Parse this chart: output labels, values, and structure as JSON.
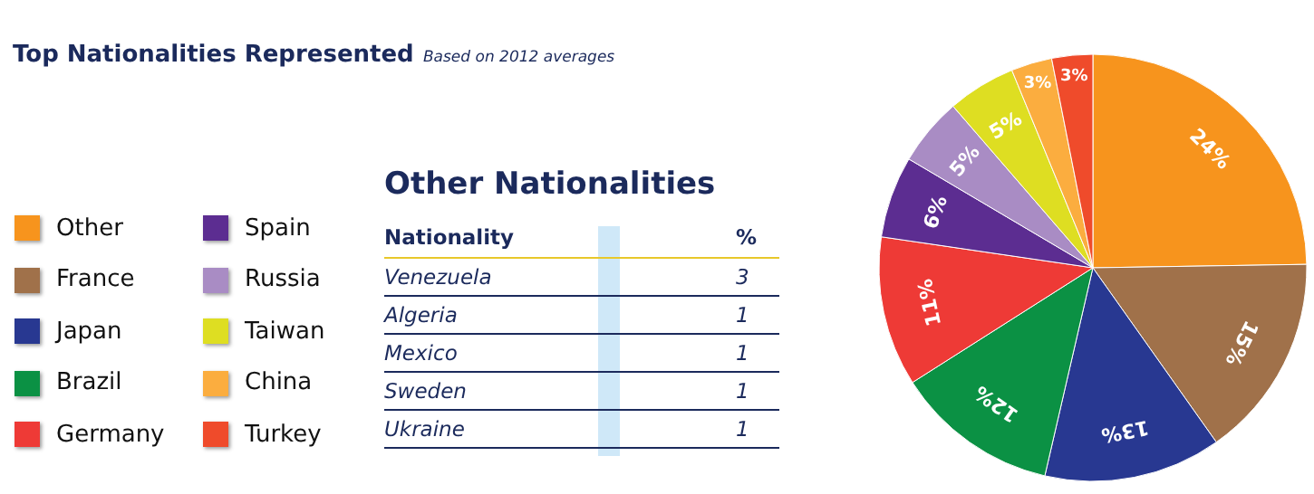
{
  "chart_data": [
    {
      "type": "pie",
      "title": "Top Nationalities Represented",
      "subtitle": "Based on 2012 averages",
      "legend": "left",
      "categories": [
        "Other",
        "France",
        "Japan",
        "Brazil",
        "Germany",
        "Spain",
        "Russia",
        "Taiwan",
        "China",
        "Turkey"
      ],
      "values": [
        24,
        15,
        13,
        12,
        11,
        6,
        5,
        5,
        3,
        3
      ],
      "value_labels": [
        "24%",
        "15%",
        "13%",
        "12%",
        "11%",
        "6%",
        "5%",
        "5%",
        "3%",
        "3%"
      ],
      "colors": [
        "#f7941d",
        "#a0714a",
        "#283891",
        "#0b9144",
        "#ee3a36",
        "#5c2d91",
        "#a98cc4",
        "#dede22",
        "#fbad3f",
        "#ef4b2b"
      ]
    },
    {
      "type": "other",
      "title": "Other Nationalities",
      "xlabel": "Nationality",
      "ylabel": "%",
      "data_labels": true,
      "categories": [
        "Venezuela",
        "Algeria",
        "Mexico",
        "Sweden",
        "Ukraine"
      ],
      "values": [
        3,
        1,
        1,
        1,
        1
      ]
    }
  ]
}
